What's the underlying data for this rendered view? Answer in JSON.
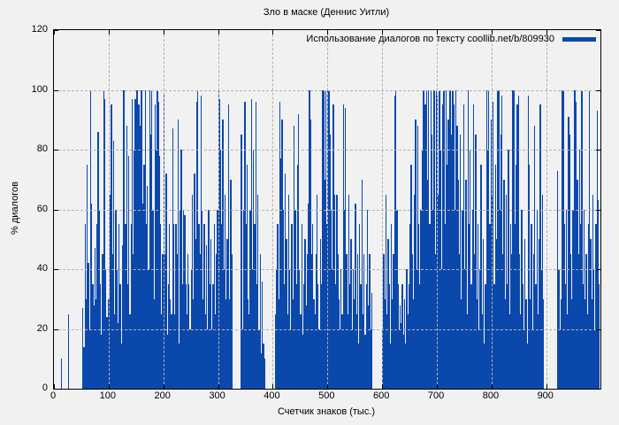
{
  "title": "Зло в маске (Деннис Уитли)",
  "legend": {
    "label": "Использование диалогов по тексту coollib.net/b/809930"
  },
  "chart_data": {
    "type": "bar",
    "title": "Зло в маске (Деннис Уитли)",
    "legend_label": "Использование диалогов по тексту coollib.net/b/809930",
    "xlabel": "Счетчик знаков (тыс.)",
    "ylabel": "% диалогов",
    "xlim": [
      0,
      999
    ],
    "ylim": [
      0,
      120
    ],
    "xticks": [
      0,
      100,
      200,
      300,
      400,
      500,
      600,
      700,
      800,
      900
    ],
    "yticks": [
      0,
      20,
      40,
      60,
      80,
      100,
      120
    ],
    "grid": "dashed",
    "legend_position": "top-right-inside",
    "colors": {
      "bar": "#0b48ab",
      "grid": "#b2b2b2",
      "axis": "#000000",
      "background": "#f1f1f1"
    },
    "bars": [
      [
        14,
        10
      ],
      [
        27,
        25
      ],
      [
        53,
        27
      ],
      [
        55,
        14
      ],
      [
        57,
        55
      ],
      [
        59,
        30
      ],
      [
        61,
        75
      ],
      [
        63,
        42
      ],
      [
        65,
        20
      ],
      [
        67,
        100
      ],
      [
        69,
        62
      ],
      [
        71,
        35
      ],
      [
        73,
        28
      ],
      [
        75,
        47
      ],
      [
        77,
        30
      ],
      [
        79,
        55
      ],
      [
        81,
        86
      ],
      [
        83,
        60
      ],
      [
        85,
        35
      ],
      [
        87,
        18
      ],
      [
        89,
        45
      ],
      [
        91,
        100
      ],
      [
        93,
        97
      ],
      [
        95,
        40
      ],
      [
        97,
        24
      ],
      [
        99,
        30
      ],
      [
        101,
        30
      ],
      [
        103,
        65
      ],
      [
        105,
        95
      ],
      [
        107,
        45
      ],
      [
        109,
        83
      ],
      [
        111,
        25
      ],
      [
        113,
        60
      ],
      [
        115,
        40
      ],
      [
        117,
        22
      ],
      [
        119,
        55
      ],
      [
        121,
        35
      ],
      [
        123,
        15
      ],
      [
        125,
        48
      ],
      [
        127,
        100
      ],
      [
        129,
        100
      ],
      [
        131,
        55
      ],
      [
        133,
        88
      ],
      [
        135,
        35
      ],
      [
        137,
        78
      ],
      [
        139,
        25
      ],
      [
        141,
        55
      ],
      [
        143,
        97
      ],
      [
        145,
        45
      ],
      [
        147,
        80
      ],
      [
        149,
        97
      ],
      [
        151,
        100
      ],
      [
        153,
        100
      ],
      [
        155,
        95
      ],
      [
        157,
        88
      ],
      [
        159,
        100
      ],
      [
        161,
        100
      ],
      [
        163,
        62
      ],
      [
        165,
        75
      ],
      [
        167,
        100
      ],
      [
        169,
        55
      ],
      [
        171,
        68
      ],
      [
        173,
        40
      ],
      [
        175,
        100
      ],
      [
        177,
        85
      ],
      [
        179,
        100
      ],
      [
        181,
        60
      ],
      [
        183,
        30
      ],
      [
        185,
        95
      ],
      [
        187,
        80
      ],
      [
        189,
        100
      ],
      [
        191,
        96
      ],
      [
        193,
        78
      ],
      [
        195,
        55
      ],
      [
        197,
        25
      ],
      [
        199,
        45
      ],
      [
        201,
        99
      ],
      [
        203,
        45
      ],
      [
        205,
        72
      ],
      [
        207,
        18
      ],
      [
        209,
        35
      ],
      [
        211,
        55
      ],
      [
        213,
        30
      ],
      [
        215,
        25
      ],
      [
        217,
        87
      ],
      [
        219,
        55
      ],
      [
        221,
        25
      ],
      [
        223,
        55
      ],
      [
        225,
        45
      ],
      [
        227,
        90
      ],
      [
        229,
        15
      ],
      [
        231,
        60
      ],
      [
        233,
        80
      ],
      [
        235,
        35
      ],
      [
        237,
        60
      ],
      [
        239,
        58
      ],
      [
        241,
        35
      ],
      [
        243,
        25
      ],
      [
        245,
        45
      ],
      [
        247,
        35
      ],
      [
        249,
        20
      ],
      [
        251,
        40
      ],
      [
        253,
        65
      ],
      [
        255,
        30
      ],
      [
        257,
        72
      ],
      [
        259,
        50
      ],
      [
        261,
        96
      ],
      [
        263,
        100
      ],
      [
        265,
        55
      ],
      [
        267,
        45
      ],
      [
        269,
        98
      ],
      [
        271,
        60
      ],
      [
        273,
        30
      ],
      [
        275,
        55
      ],
      [
        277,
        25
      ],
      [
        279,
        48
      ],
      [
        281,
        20
      ],
      [
        283,
        60
      ],
      [
        285,
        35
      ],
      [
        287,
        50
      ],
      [
        289,
        20
      ],
      [
        291,
        35
      ],
      [
        293,
        55
      ],
      [
        295,
        25
      ],
      [
        297,
        45
      ],
      [
        299,
        60
      ],
      [
        301,
        100
      ],
      [
        303,
        97
      ],
      [
        305,
        80
      ],
      [
        307,
        55
      ],
      [
        309,
        90
      ],
      [
        311,
        40
      ],
      [
        313,
        65
      ],
      [
        315,
        30
      ],
      [
        317,
        50
      ],
      [
        319,
        95
      ],
      [
        321,
        30
      ],
      [
        323,
        70
      ],
      [
        325,
        45
      ],
      [
        343,
        85
      ],
      [
        345,
        20
      ],
      [
        347,
        60
      ],
      [
        349,
        96
      ],
      [
        351,
        55
      ],
      [
        353,
        75
      ],
      [
        355,
        30
      ],
      [
        357,
        25
      ],
      [
        359,
        60
      ],
      [
        361,
        97
      ],
      [
        363,
        40
      ],
      [
        365,
        80
      ],
      [
        367,
        55
      ],
      [
        369,
        96
      ],
      [
        371,
        35
      ],
      [
        373,
        65
      ],
      [
        375,
        20
      ],
      [
        377,
        45
      ],
      [
        379,
        12
      ],
      [
        381,
        36
      ],
      [
        383,
        15
      ],
      [
        385,
        10
      ],
      [
        405,
        25
      ],
      [
        407,
        40
      ],
      [
        409,
        55
      ],
      [
        411,
        30
      ],
      [
        413,
        96
      ],
      [
        415,
        77
      ],
      [
        417,
        90
      ],
      [
        419,
        60
      ],
      [
        421,
        35
      ],
      [
        423,
        72
      ],
      [
        425,
        50
      ],
      [
        427,
        25
      ],
      [
        429,
        65
      ],
      [
        431,
        40
      ],
      [
        433,
        20
      ],
      [
        435,
        55
      ],
      [
        437,
        30
      ],
      [
        439,
        88
      ],
      [
        441,
        60
      ],
      [
        443,
        35
      ],
      [
        445,
        75
      ],
      [
        447,
        92
      ],
      [
        449,
        40
      ],
      [
        451,
        25
      ],
      [
        453,
        55
      ],
      [
        455,
        18
      ],
      [
        457,
        35
      ],
      [
        459,
        50
      ],
      [
        461,
        28
      ],
      [
        463,
        45
      ],
      [
        465,
        62
      ],
      [
        467,
        100
      ],
      [
        469,
        90
      ],
      [
        471,
        45
      ],
      [
        473,
        55
      ],
      [
        475,
        30
      ],
      [
        477,
        25
      ],
      [
        479,
        45
      ],
      [
        481,
        65
      ],
      [
        483,
        35
      ],
      [
        485,
        20
      ],
      [
        487,
        50
      ],
      [
        489,
        35
      ],
      [
        491,
        100
      ],
      [
        493,
        100
      ],
      [
        495,
        70
      ],
      [
        497,
        100
      ],
      [
        499,
        55
      ],
      [
        501,
        100
      ],
      [
        503,
        100
      ],
      [
        505,
        85
      ],
      [
        507,
        60
      ],
      [
        509,
        40
      ],
      [
        511,
        95
      ],
      [
        513,
        65
      ],
      [
        515,
        35
      ],
      [
        517,
        65
      ],
      [
        519,
        45
      ],
      [
        521,
        30
      ],
      [
        523,
        20
      ],
      [
        525,
        40
      ],
      [
        527,
        25
      ],
      [
        529,
        95
      ],
      [
        531,
        60
      ],
      [
        533,
        94
      ],
      [
        535,
        45
      ],
      [
        537,
        25
      ],
      [
        539,
        65
      ],
      [
        541,
        35
      ],
      [
        543,
        50
      ],
      [
        545,
        20
      ],
      [
        547,
        40
      ],
      [
        549,
        30
      ],
      [
        551,
        62
      ],
      [
        553,
        25
      ],
      [
        555,
        45
      ],
      [
        557,
        15
      ],
      [
        559,
        55
      ],
      [
        561,
        35
      ],
      [
        563,
        70
      ],
      [
        565,
        25
      ],
      [
        567,
        45
      ],
      [
        569,
        18
      ],
      [
        571,
        35
      ],
      [
        573,
        60
      ],
      [
        575,
        28
      ],
      [
        577,
        45
      ],
      [
        579,
        20
      ],
      [
        581,
        32
      ],
      [
        601,
        20
      ],
      [
        603,
        45
      ],
      [
        605,
        30
      ],
      [
        607,
        65
      ],
      [
        609,
        25
      ],
      [
        611,
        50
      ],
      [
        613,
        35
      ],
      [
        615,
        15
      ],
      [
        617,
        55
      ],
      [
        619,
        30
      ],
      [
        621,
        45
      ],
      [
        623,
        98
      ],
      [
        625,
        100
      ],
      [
        627,
        60
      ],
      [
        629,
        35
      ],
      [
        631,
        20
      ],
      [
        633,
        28
      ],
      [
        635,
        22
      ],
      [
        637,
        35
      ],
      [
        639,
        18
      ],
      [
        641,
        30
      ],
      [
        643,
        15
      ],
      [
        645,
        40
      ],
      [
        647,
        25
      ],
      [
        649,
        35
      ],
      [
        651,
        55
      ],
      [
        653,
        75
      ],
      [
        655,
        45
      ],
      [
        657,
        30
      ],
      [
        659,
        65
      ],
      [
        661,
        90
      ],
      [
        663,
        40
      ],
      [
        665,
        88
      ],
      [
        667,
        55
      ],
      [
        669,
        35
      ],
      [
        671,
        60
      ],
      [
        673,
        80
      ],
      [
        675,
        100
      ],
      [
        677,
        100
      ],
      [
        679,
        95
      ],
      [
        681,
        100
      ],
      [
        683,
        70
      ],
      [
        685,
        100
      ],
      [
        687,
        55
      ],
      [
        689,
        100
      ],
      [
        691,
        85
      ],
      [
        693,
        60
      ],
      [
        695,
        100
      ],
      [
        697,
        45
      ],
      [
        699,
        100
      ],
      [
        701,
        98
      ],
      [
        703,
        65
      ],
      [
        705,
        100
      ],
      [
        707,
        80
      ],
      [
        709,
        40
      ],
      [
        711,
        95
      ],
      [
        713,
        100
      ],
      [
        715,
        55
      ],
      [
        717,
        100
      ],
      [
        719,
        75
      ],
      [
        721,
        90
      ],
      [
        723,
        100
      ],
      [
        725,
        100
      ],
      [
        727,
        85
      ],
      [
        729,
        100
      ],
      [
        731,
        95
      ],
      [
        733,
        60
      ],
      [
        735,
        100
      ],
      [
        737,
        88
      ],
      [
        739,
        70
      ],
      [
        741,
        45
      ],
      [
        743,
        85
      ],
      [
        745,
        30
      ],
      [
        747,
        60
      ],
      [
        749,
        95
      ],
      [
        751,
        40
      ],
      [
        753,
        70
      ],
      [
        755,
        25
      ],
      [
        757,
        100
      ],
      [
        759,
        55
      ],
      [
        761,
        80
      ],
      [
        763,
        35
      ],
      [
        765,
        60
      ],
      [
        767,
        95
      ],
      [
        769,
        45
      ],
      [
        771,
        85
      ],
      [
        773,
        30
      ],
      [
        775,
        55
      ],
      [
        777,
        20
      ],
      [
        779,
        40
      ],
      [
        781,
        75
      ],
      [
        783,
        25
      ],
      [
        785,
        50
      ],
      [
        787,
        15
      ],
      [
        789,
        35
      ],
      [
        791,
        100
      ],
      [
        793,
        80
      ],
      [
        795,
        100
      ],
      [
        797,
        55
      ],
      [
        799,
        90
      ],
      [
        801,
        65
      ],
      [
        803,
        96
      ],
      [
        805,
        35
      ],
      [
        807,
        75
      ],
      [
        809,
        50
      ],
      [
        811,
        100
      ],
      [
        813,
        100
      ],
      [
        815,
        60
      ],
      [
        817,
        85
      ],
      [
        819,
        98
      ],
      [
        821,
        45
      ],
      [
        823,
        70
      ],
      [
        825,
        30
      ],
      [
        827,
        65
      ],
      [
        829,
        35
      ],
      [
        831,
        80
      ],
      [
        833,
        25
      ],
      [
        835,
        55
      ],
      [
        837,
        45
      ],
      [
        839,
        100
      ],
      [
        841,
        100
      ],
      [
        843,
        55
      ],
      [
        845,
        75
      ],
      [
        847,
        95
      ],
      [
        849,
        98
      ],
      [
        851,
        45
      ],
      [
        853,
        25
      ],
      [
        855,
        60
      ],
      [
        857,
        35
      ],
      [
        859,
        20
      ],
      [
        861,
        50
      ],
      [
        863,
        30
      ],
      [
        865,
        15
      ],
      [
        867,
        98
      ],
      [
        869,
        75
      ],
      [
        871,
        30
      ],
      [
        873,
        55
      ],
      [
        875,
        20
      ],
      [
        877,
        45
      ],
      [
        879,
        88
      ],
      [
        881,
        35
      ],
      [
        883,
        60
      ],
      [
        885,
        25
      ],
      [
        887,
        50
      ],
      [
        889,
        95
      ],
      [
        891,
        40
      ],
      [
        893,
        65
      ],
      [
        895,
        30
      ],
      [
        921,
        73
      ],
      [
        923,
        40
      ],
      [
        925,
        20
      ],
      [
        927,
        30
      ],
      [
        929,
        100
      ],
      [
        931,
        100
      ],
      [
        933,
        55
      ],
      [
        935,
        35
      ],
      [
        937,
        60
      ],
      [
        939,
        25
      ],
      [
        941,
        91
      ],
      [
        943,
        85
      ],
      [
        945,
        45
      ],
      [
        947,
        30
      ],
      [
        949,
        60
      ],
      [
        951,
        100
      ],
      [
        953,
        100
      ],
      [
        955,
        96
      ],
      [
        957,
        70
      ],
      [
        959,
        45
      ],
      [
        961,
        80
      ],
      [
        963,
        55
      ],
      [
        965,
        100
      ],
      [
        967,
        35
      ],
      [
        969,
        60
      ],
      [
        971,
        30
      ],
      [
        973,
        45
      ],
      [
        975,
        25
      ],
      [
        977,
        55
      ],
      [
        979,
        100
      ],
      [
        981,
        50
      ],
      [
        983,
        30
      ],
      [
        985,
        65
      ],
      [
        987,
        40
      ],
      [
        989,
        20
      ],
      [
        991,
        55
      ],
      [
        993,
        93
      ],
      [
        995,
        63
      ],
      [
        997,
        35
      ]
    ]
  }
}
